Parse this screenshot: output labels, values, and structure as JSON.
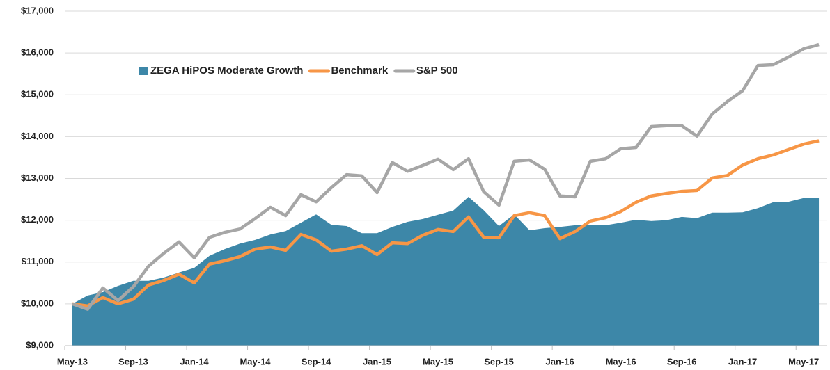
{
  "chart_data": {
    "type": "line",
    "categories": [
      "May-13",
      null,
      null,
      null,
      "Sep-13",
      null,
      null,
      null,
      "Jan-14",
      null,
      null,
      null,
      "May-14",
      null,
      null,
      null,
      "Sep-14",
      null,
      null,
      null,
      "Jan-15",
      null,
      null,
      null,
      "May-15",
      null,
      null,
      null,
      "Sep-15",
      null,
      null,
      null,
      "Jan-16",
      null,
      null,
      null,
      "May-16",
      null,
      null,
      null,
      "Sep-16",
      null,
      null,
      null,
      "Jan-17",
      null,
      null,
      null,
      "May-17",
      null
    ],
    "series": [
      {
        "name": "ZEGA HiPOS Moderate Growth",
        "type": "area",
        "color": "#3d87a8",
        "values": [
          10000,
          10200,
          10280,
          10430,
          10550,
          10550,
          10630,
          10750,
          10860,
          11150,
          11310,
          11440,
          11530,
          11660,
          11740,
          11940,
          12140,
          11890,
          11860,
          11690,
          11690,
          11840,
          11960,
          12030,
          12130,
          12230,
          12560,
          12240,
          11860,
          12140,
          11760,
          11810,
          11840,
          11880,
          11890,
          11880,
          11940,
          12010,
          11980,
          12000,
          12080,
          12050,
          12180,
          12180,
          12190,
          12290,
          12430,
          12440,
          12530,
          12540
        ]
      },
      {
        "name": "Benchmark",
        "type": "line",
        "color": "#f79646",
        "values": [
          10000,
          9950,
          10150,
          10000,
          10110,
          10450,
          10560,
          10710,
          10500,
          10950,
          11030,
          11130,
          11310,
          11360,
          11280,
          11660,
          11530,
          11260,
          11310,
          11390,
          11180,
          11460,
          11440,
          11640,
          11780,
          11730,
          12080,
          11590,
          11580,
          12110,
          12180,
          12110,
          11560,
          11730,
          11980,
          12060,
          12210,
          12430,
          12580,
          12640,
          12690,
          12710,
          13010,
          13070,
          13320,
          13470,
          13560,
          13690,
          13820,
          13900
        ]
      },
      {
        "name": "S&P 500",
        "type": "line",
        "color": "#a6a6a6",
        "values": [
          10000,
          9870,
          10380,
          10080,
          10410,
          10900,
          11210,
          11480,
          11100,
          11590,
          11710,
          11790,
          12040,
          12310,
          12110,
          12610,
          12440,
          12780,
          13090,
          13060,
          12660,
          13380,
          13170,
          13310,
          13460,
          13210,
          13470,
          12680,
          12360,
          13410,
          13440,
          13220,
          12580,
          12560,
          13410,
          13470,
          13710,
          13740,
          14240,
          14260,
          14260,
          14010,
          14540,
          14840,
          15100,
          15700,
          15720,
          15900,
          16100,
          16200
        ]
      }
    ],
    "ylim": [
      9000,
      17000
    ],
    "yticks": [
      {
        "value": 9000,
        "label": "$9,000"
      },
      {
        "value": 10000,
        "label": "$10,000"
      },
      {
        "value": 11000,
        "label": "$11,000"
      },
      {
        "value": 12000,
        "label": "$12,000"
      },
      {
        "value": 13000,
        "label": "$13,000"
      },
      {
        "value": 14000,
        "label": "$14,000"
      },
      {
        "value": 15000,
        "label": "$15,000"
      },
      {
        "value": 16000,
        "label": "$16,000"
      },
      {
        "value": 17000,
        "label": "$17,000"
      }
    ],
    "grid": true,
    "legend": "top-left"
  }
}
